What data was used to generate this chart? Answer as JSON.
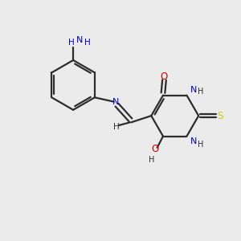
{
  "bg_color": "#ebebeb",
  "bond_color": "#2d2d2d",
  "atom_colors": {
    "N": "#0000cc",
    "O": "#dd0000",
    "S": "#cccc00",
    "C": "#2d2d2d",
    "H": "#2d2d2d"
  },
  "figsize": [
    3.0,
    3.0
  ],
  "dpi": 100,
  "lw": 1.6
}
